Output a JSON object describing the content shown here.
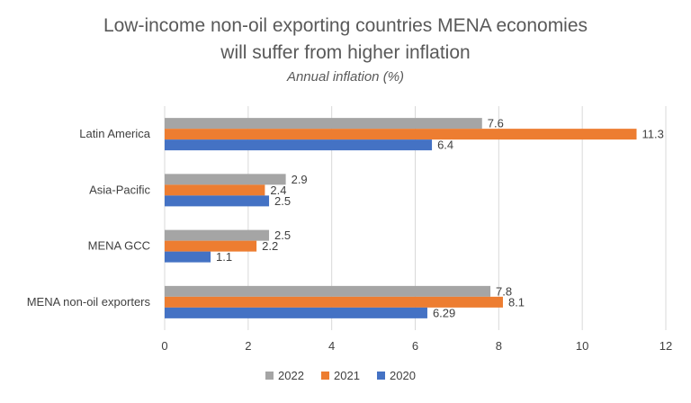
{
  "chart_data": {
    "type": "bar",
    "orientation": "horizontal",
    "title_lines": [
      "Low-income non-oil exporting countries MENA economies",
      "will suffer from higher inflation"
    ],
    "subtitle": "Annual inflation (%)",
    "categories": [
      "Latin America",
      "Asia-Pacific",
      "MENA GCC",
      "MENA non-oil exporters"
    ],
    "series": [
      {
        "name": "2022",
        "color": "#A5A5A5",
        "values": [
          7.6,
          2.9,
          2.5,
          7.8
        ],
        "labels": [
          "7.6",
          "2.9",
          "2.5",
          "7.8"
        ]
      },
      {
        "name": "2021",
        "color": "#ED7D31",
        "values": [
          11.3,
          2.4,
          2.2,
          8.1
        ],
        "labels": [
          "11.3",
          "2.4",
          "2.2",
          "8.1"
        ]
      },
      {
        "name": "2020",
        "color": "#4472C4",
        "values": [
          6.4,
          2.5,
          1.1,
          6.29
        ],
        "labels": [
          "6.4",
          "2.5",
          "1.1",
          "6.29"
        ]
      }
    ],
    "xlim": [
      0,
      12
    ],
    "xticks": [
      0,
      2,
      4,
      6,
      8,
      10,
      12
    ],
    "xtick_labels": [
      "0",
      "2",
      "4",
      "6",
      "8",
      "10",
      "12"
    ],
    "grid": "vertical",
    "legend": "bottom",
    "legend_order": [
      "2022",
      "2021",
      "2020"
    ]
  }
}
